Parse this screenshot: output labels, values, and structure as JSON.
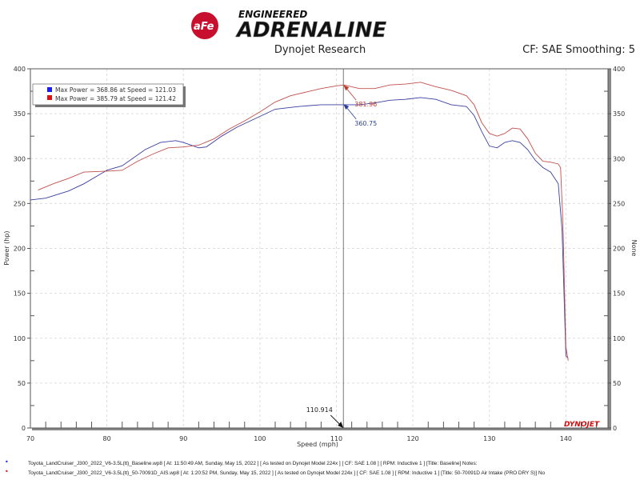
{
  "header": {
    "logo_text_top": "ENGINEERED",
    "logo_text_main": "ADRENALINE",
    "logo_badge": "aFe POWER",
    "subtitle": "Dynojet Research",
    "cf_info": "CF: SAE Smoothing: 5"
  },
  "chart_data": {
    "type": "line",
    "xlabel": "Speed (mph)",
    "ylabel": "Power (hp)",
    "y2label": "None",
    "xlim": [
      70,
      145.5
    ],
    "ylim": [
      0,
      400
    ],
    "xticks": [
      70,
      80,
      90,
      100,
      110,
      120,
      130,
      140
    ],
    "yticks": [
      0,
      50,
      100,
      150,
      200,
      250,
      300,
      350,
      400
    ],
    "grid": true,
    "legend": {
      "placement": "top-left",
      "entries": [
        "Max Power = 368.86 at Speed = 121.03",
        "Max Power = 385.79 at Speed = 121.42"
      ]
    },
    "cursor": {
      "x": 110.914,
      "label": "110.914"
    },
    "annotations": [
      {
        "text": "381.96",
        "color": "#c0392b",
        "y": 381.96
      },
      {
        "text": "360.75",
        "color": "#2c3e9c",
        "y": 360.75
      }
    ],
    "series": [
      {
        "color": "#3b3fa0",
        "x": [
          70,
          72,
          75,
          77,
          80,
          82,
          85,
          87,
          89,
          90,
          92,
          93,
          95,
          97,
          100,
          102,
          105,
          108,
          111,
          113,
          115,
          117,
          119,
          121,
          123,
          125,
          127,
          128,
          129,
          130,
          131,
          132,
          133,
          134,
          135,
          136,
          137,
          138,
          139,
          139.5,
          140,
          140.3
        ],
        "y": [
          254,
          256,
          264,
          272,
          287,
          292,
          310,
          318,
          320,
          318,
          312,
          313,
          325,
          335,
          347,
          355,
          358,
          360,
          360,
          360,
          362,
          365,
          366,
          368,
          366,
          360,
          358,
          348,
          330,
          314,
          312,
          318,
          320,
          318,
          310,
          298,
          290,
          285,
          272,
          220,
          80,
          78
        ]
      },
      {
        "color": "#c0504d",
        "x": [
          71,
          73,
          75,
          77,
          80,
          82,
          84,
          86,
          88,
          90,
          92,
          94,
          96,
          98,
          100,
          102,
          104,
          106,
          108,
          110,
          111,
          113,
          115,
          117,
          119,
          121,
          123,
          125,
          127,
          128,
          129,
          130,
          131,
          132,
          133,
          134,
          135,
          136,
          137,
          138,
          139,
          139.3,
          139.6,
          140,
          140.3
        ],
        "y": [
          265,
          272,
          278,
          285,
          286,
          287,
          297,
          305,
          312,
          313,
          315,
          322,
          333,
          342,
          352,
          363,
          370,
          374,
          378,
          381,
          382,
          378,
          378,
          382,
          383,
          385,
          380,
          376,
          370,
          360,
          340,
          328,
          325,
          328,
          334,
          333,
          322,
          306,
          297,
          296,
          294,
          290,
          230,
          90,
          75
        ]
      }
    ]
  },
  "watermark": "DYNOJET",
  "footer": [
    "Toyota_LandCruiser_J300_2022_V6-3.5L(tt)_Baseline.wp8 [ At: 11:50:49 AM, Sunday, May 15, 2022 ] [ As tested on Dynojet Model 224x ] [ CF: SAE 1.08 ] [ RPM: Inductive 1 ] [Title: Baseline]  Notes:",
    "Toyota_LandCruiser_J300_2022_V6-3.5L(tt)_50-70091D_AIS.wp8 [ At: 1:20:52 PM, Sunday, May 15, 2022 ] [ As tested on Dynojet Model 224x ] [ CF: SAE 1.08 ] [ RPM: Inductive 1 ] [Title: 50-70091D Air Intake (PRO DRY S)]  No"
  ]
}
